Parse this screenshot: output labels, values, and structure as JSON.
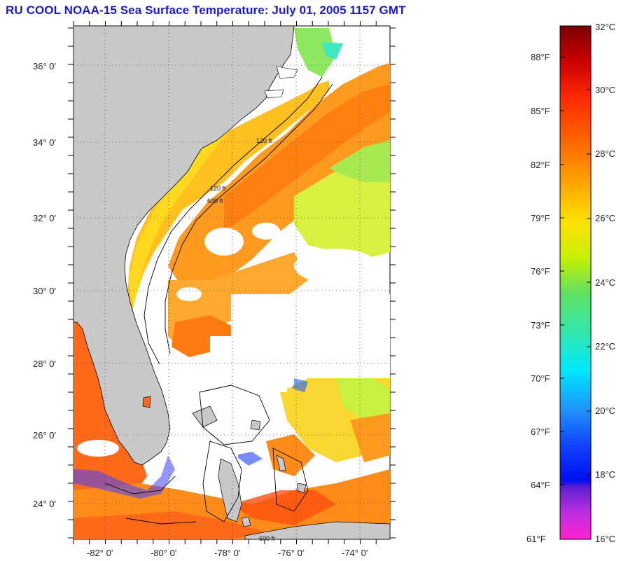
{
  "title": "RU COOL  NOAA-15  Sea Surface Temperature:  July 01, 2005 1157 GMT",
  "map": {
    "lat_labels": [
      "36° 0'",
      "34° 0'",
      "32° 0'",
      "30° 0'",
      "28° 0'",
      "26° 0'",
      "24° 0'"
    ],
    "lon_labels": [
      "-82° 0'",
      "-80° 0'",
      "-78° 0'",
      "-76° 0'",
      "-74° 0'"
    ],
    "contour_labels": [
      "120 ft",
      "600 ft"
    ],
    "colors": {
      "land": "#c8c8c8",
      "no_data": "#ffffff",
      "grid": "#555555"
    }
  },
  "colorbar": {
    "celsius_labels": [
      "32°C",
      "30°C",
      "28°C",
      "26°C",
      "24°C",
      "22°C",
      "20°C",
      "18°C",
      "16°C"
    ],
    "fahrenheit_labels": [
      "88°F",
      "85°F",
      "82°F",
      "79°F",
      "76°F",
      "73°F",
      "70°F",
      "67°F",
      "64°F",
      "61°F"
    ],
    "range_celsius": [
      16,
      32
    ]
  }
}
